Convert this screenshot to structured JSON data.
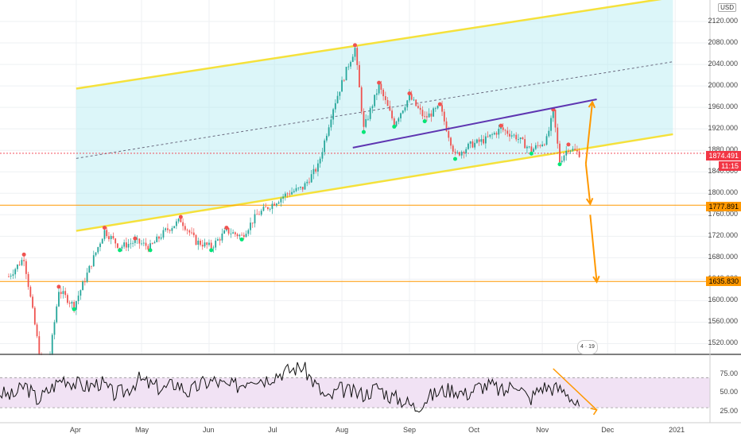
{
  "chart_data": {
    "type": "candlestick",
    "currency": "USD",
    "price_axis": {
      "ticks": [
        2120,
        2080,
        2040,
        2000,
        1960,
        1920,
        1880,
        1840,
        1800,
        1760,
        1720,
        1680,
        1640,
        1600,
        1560,
        1520
      ],
      "tick_labels": [
        "2120.000",
        "2080.000",
        "2040.000",
        "2000.000",
        "1960.000",
        "1920.000",
        "1880.000",
        "1840.000",
        "1800.000",
        "1760.000",
        "1720.000",
        "1680.000",
        "1640.000",
        "1600.000",
        "1560.000",
        "1520.000"
      ],
      "range": [
        1500,
        2160
      ]
    },
    "rsi_axis": {
      "ticks": [
        75,
        50,
        25
      ],
      "tick_labels": [
        "75.00",
        "50.00",
        "25.00"
      ],
      "range": [
        10,
        100
      ]
    },
    "time_axis": [
      "Apr",
      "May",
      "Jun",
      "Jul",
      "Aug",
      "Sep",
      "Oct",
      "Nov",
      "Dec",
      "2021"
    ],
    "price_tags": {
      "current": {
        "label": "1874.491",
        "value": 1874.5,
        "color": "#f23645"
      },
      "countdown": {
        "label": "11:15",
        "color": "#f23645"
      },
      "level_1": {
        "label": "1777.891",
        "value": 1777.9,
        "color": "#ff9800"
      },
      "level_2": {
        "label": "1635.830",
        "value": 1635.8,
        "color": "#ff9800"
      }
    },
    "price_path": [
      [
        "2020-03-01",
        1645
      ],
      [
        "2020-03-08",
        1680
      ],
      [
        "2020-03-12",
        1580
      ],
      [
        "2020-03-16",
        1480
      ],
      [
        "2020-03-20",
        1500
      ],
      [
        "2020-03-24",
        1620
      ],
      [
        "2020-03-31",
        1590
      ],
      [
        "2020-04-07",
        1660
      ],
      [
        "2020-04-14",
        1730
      ],
      [
        "2020-04-21",
        1700
      ],
      [
        "2020-04-28",
        1710
      ],
      [
        "2020-05-05",
        1700
      ],
      [
        "2020-05-12",
        1730
      ],
      [
        "2020-05-19",
        1750
      ],
      [
        "2020-05-26",
        1710
      ],
      [
        "2020-06-02",
        1700
      ],
      [
        "2020-06-09",
        1730
      ],
      [
        "2020-06-16",
        1720
      ],
      [
        "2020-06-23",
        1760
      ],
      [
        "2020-06-30",
        1780
      ],
      [
        "2020-07-07",
        1800
      ],
      [
        "2020-07-14",
        1810
      ],
      [
        "2020-07-21",
        1850
      ],
      [
        "2020-07-28",
        1960
      ],
      [
        "2020-08-04",
        2040
      ],
      [
        "2020-08-07",
        2070
      ],
      [
        "2020-08-11",
        1920
      ],
      [
        "2020-08-18",
        2000
      ],
      [
        "2020-08-25",
        1930
      ],
      [
        "2020-09-01",
        1980
      ],
      [
        "2020-09-08",
        1940
      ],
      [
        "2020-09-15",
        1960
      ],
      [
        "2020-09-22",
        1870
      ],
      [
        "2020-09-29",
        1890
      ],
      [
        "2020-10-06",
        1900
      ],
      [
        "2020-10-13",
        1920
      ],
      [
        "2020-10-20",
        1905
      ],
      [
        "2020-10-27",
        1880
      ],
      [
        "2020-11-03",
        1900
      ],
      [
        "2020-11-06",
        1950
      ],
      [
        "2020-11-09",
        1860
      ],
      [
        "2020-11-13",
        1885
      ],
      [
        "2020-11-18",
        1874
      ]
    ],
    "annotations": {
      "channel_upper_line": [
        [
          "2020-04-01",
          1995
        ],
        [
          "2020-12-31",
          2165
        ]
      ],
      "channel_mid_line": [
        [
          "2020-04-01",
          1865
        ],
        [
          "2020-12-31",
          2045
        ]
      ],
      "channel_lower_line": [
        [
          "2020-04-01",
          1730
        ],
        [
          "2020-12-31",
          1910
        ]
      ],
      "trend_line_purple": [
        [
          "2020-08-06",
          1885
        ],
        [
          "2020-11-26",
          1975
        ]
      ],
      "horizontal_levels": [
        1777.9,
        1635.8
      ],
      "arrows": [
        {
          "from": [
            "2020-11-21",
            1855
          ],
          "to": [
            "2020-11-24",
            1970
          ],
          "color": "#ff9800"
        },
        {
          "from": [
            "2020-11-21",
            1855
          ],
          "to": [
            "2020-11-23",
            1780
          ],
          "color": "#ff9800"
        },
        {
          "from": [
            "2020-11-23",
            1760
          ],
          "to": [
            "2020-11-26",
            1635
          ],
          "color": "#ff9800"
        }
      ]
    },
    "rsi_values": [
      50,
      45,
      60,
      40,
      55,
      70,
      62,
      58,
      64,
      48,
      52,
      68,
      60,
      55,
      63,
      50,
      62,
      66,
      58,
      60,
      72,
      68,
      75,
      80,
      85,
      62,
      40,
      55,
      50,
      48,
      58,
      45,
      40,
      30,
      44,
      52,
      55,
      48,
      58,
      60,
      50,
      65,
      40,
      58,
      56,
      52,
      28
    ]
  },
  "badges": {
    "currency_label": "USD",
    "events_label": "4 · 19"
  }
}
